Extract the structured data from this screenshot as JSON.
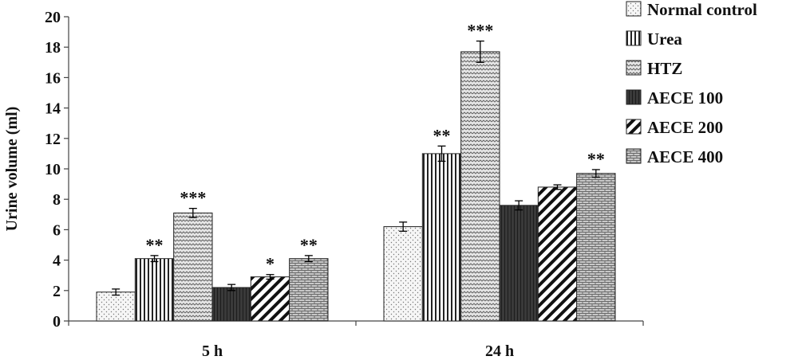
{
  "chart_data": {
    "type": "bar",
    "ylabel": "Urine volume  (ml)",
    "xlabel": "",
    "ylim": [
      0,
      20
    ],
    "yticks": [
      0,
      2,
      4,
      6,
      8,
      10,
      12,
      14,
      16,
      18,
      20
    ],
    "categories": [
      "5 h",
      "24 h"
    ],
    "legend_position": "top-right",
    "grid": false,
    "series": [
      {
        "name": "Normal control",
        "values": [
          1.9,
          6.2
        ],
        "errors": [
          0.2,
          0.3
        ],
        "significance": [
          "",
          ""
        ],
        "pattern": "dots"
      },
      {
        "name": "Urea",
        "values": [
          4.1,
          11.0
        ],
        "errors": [
          0.2,
          0.5
        ],
        "significance": [
          "**",
          "**"
        ],
        "pattern": "vertical-lines"
      },
      {
        "name": "HTZ",
        "values": [
          7.1,
          17.7
        ],
        "errors": [
          0.3,
          0.7
        ],
        "significance": [
          "***",
          "***"
        ],
        "pattern": "waves"
      },
      {
        "name": "AECE 100",
        "values": [
          2.2,
          7.6
        ],
        "errors": [
          0.2,
          0.3
        ],
        "significance": [
          "",
          ""
        ],
        "pattern": "dark"
      },
      {
        "name": "AECE 200",
        "values": [
          2.9,
          8.8
        ],
        "errors": [
          0.15,
          0.15
        ],
        "significance": [
          "*",
          ""
        ],
        "pattern": "diagonal"
      },
      {
        "name": "AECE 400",
        "values": [
          4.1,
          9.7
        ],
        "errors": [
          0.2,
          0.25
        ],
        "significance": [
          "**",
          "**"
        ],
        "pattern": "bricks"
      }
    ]
  }
}
